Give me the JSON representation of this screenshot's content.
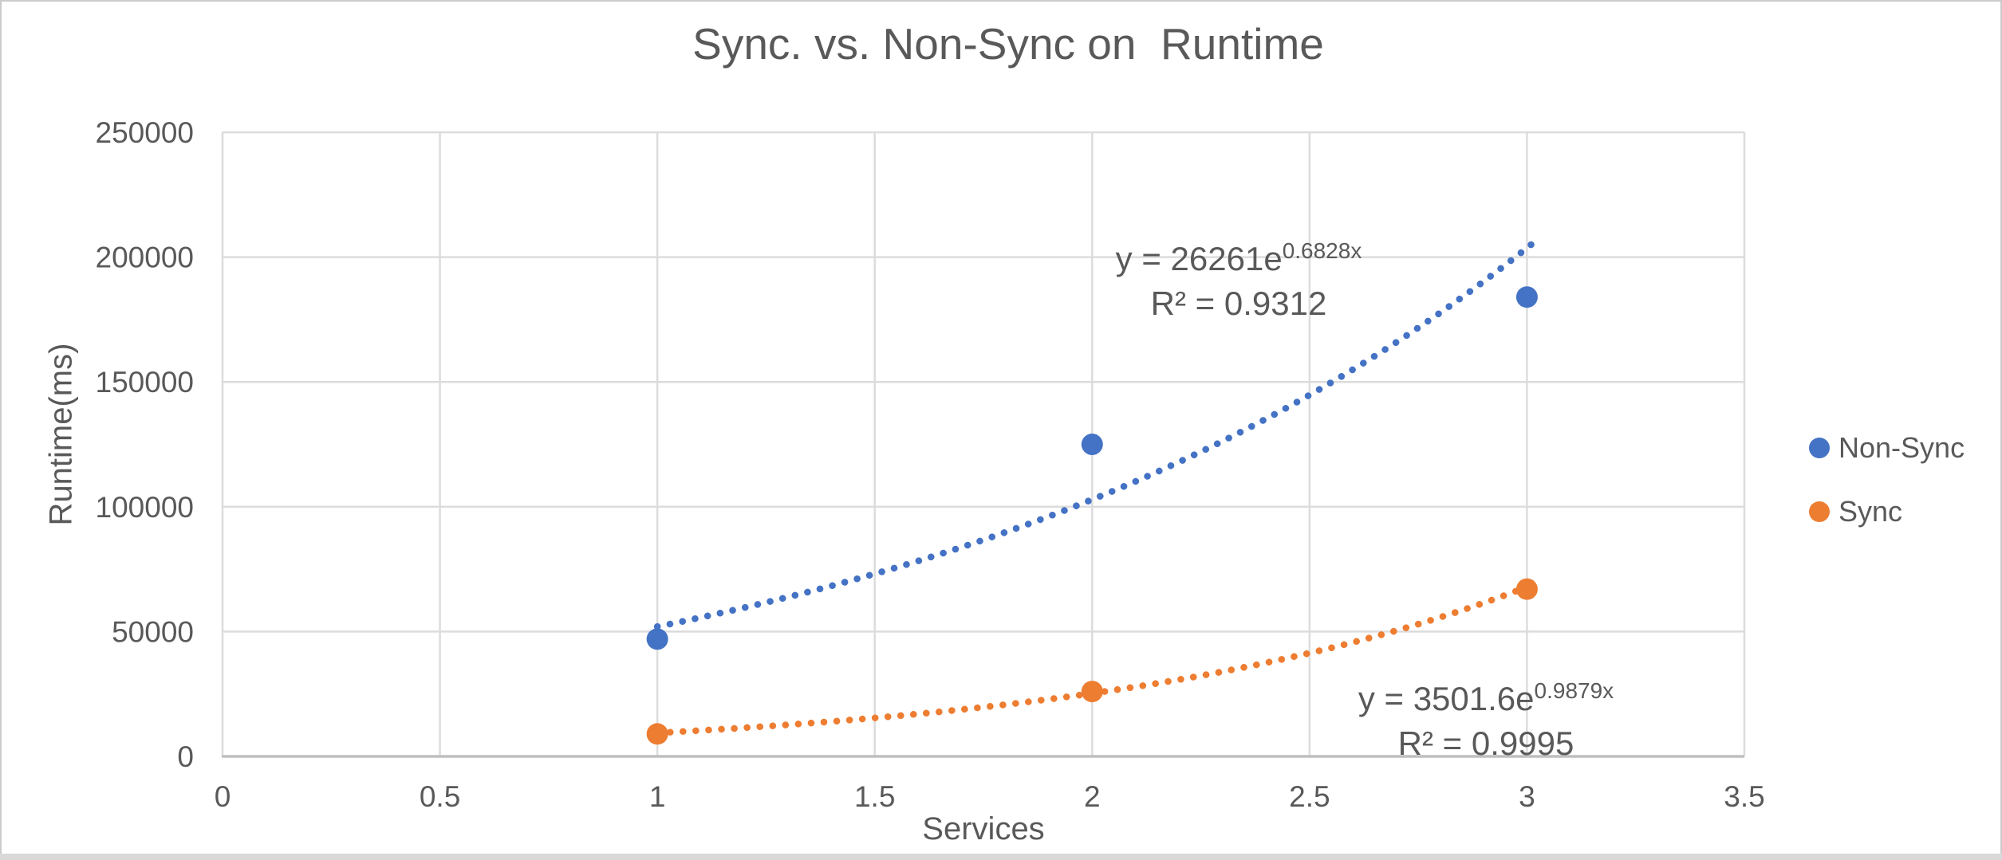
{
  "chart_data": {
    "type": "scatter",
    "title": "Sync. vs. Non-Sync on  Runtime",
    "xlabel": "Services",
    "ylabel": "Runtime(ms)",
    "xlim": [
      0,
      3.5
    ],
    "ylim": [
      0,
      250000
    ],
    "x_ticks": [
      0,
      0.5,
      1,
      1.5,
      2,
      2.5,
      3,
      3.5
    ],
    "x_tick_labels": [
      "0",
      "0.5",
      "1",
      "1.5",
      "2",
      "2.5",
      "3",
      "3.5"
    ],
    "y_ticks": [
      0,
      50000,
      100000,
      150000,
      200000,
      250000
    ],
    "y_tick_labels": [
      "0",
      "50000",
      "100000",
      "150000",
      "200000",
      "250000"
    ],
    "grid": true,
    "legend_position": "right",
    "series": [
      {
        "name": "Non-Sync",
        "color": "#4472C4",
        "x": [
          1,
          2,
          3
        ],
        "y": [
          47000,
          125000,
          184000
        ],
        "trendline": {
          "type": "exponential",
          "a": 26261,
          "b": 0.6828,
          "x_range": [
            1,
            3.02
          ],
          "style": "dotted",
          "equation_base": "y = 26261e",
          "equation_exponent": "0.6828x",
          "r_squared": "R² = 0.9312"
        }
      },
      {
        "name": "Sync",
        "color": "#ED7D31",
        "x": [
          1,
          2,
          3
        ],
        "y": [
          9000,
          26000,
          67000
        ],
        "trendline": {
          "type": "exponential",
          "a": 3501.6,
          "b": 0.9879,
          "x_range": [
            1,
            3.02
          ],
          "style": "dotted",
          "equation_base": "y = 3501.6e",
          "equation_exponent": "0.9879x",
          "r_squared": "R² = 0.9995"
        }
      }
    ],
    "colors": {
      "grid": "#DCDCDC",
      "axis": "#BFBFBF",
      "text": "#595959"
    }
  }
}
